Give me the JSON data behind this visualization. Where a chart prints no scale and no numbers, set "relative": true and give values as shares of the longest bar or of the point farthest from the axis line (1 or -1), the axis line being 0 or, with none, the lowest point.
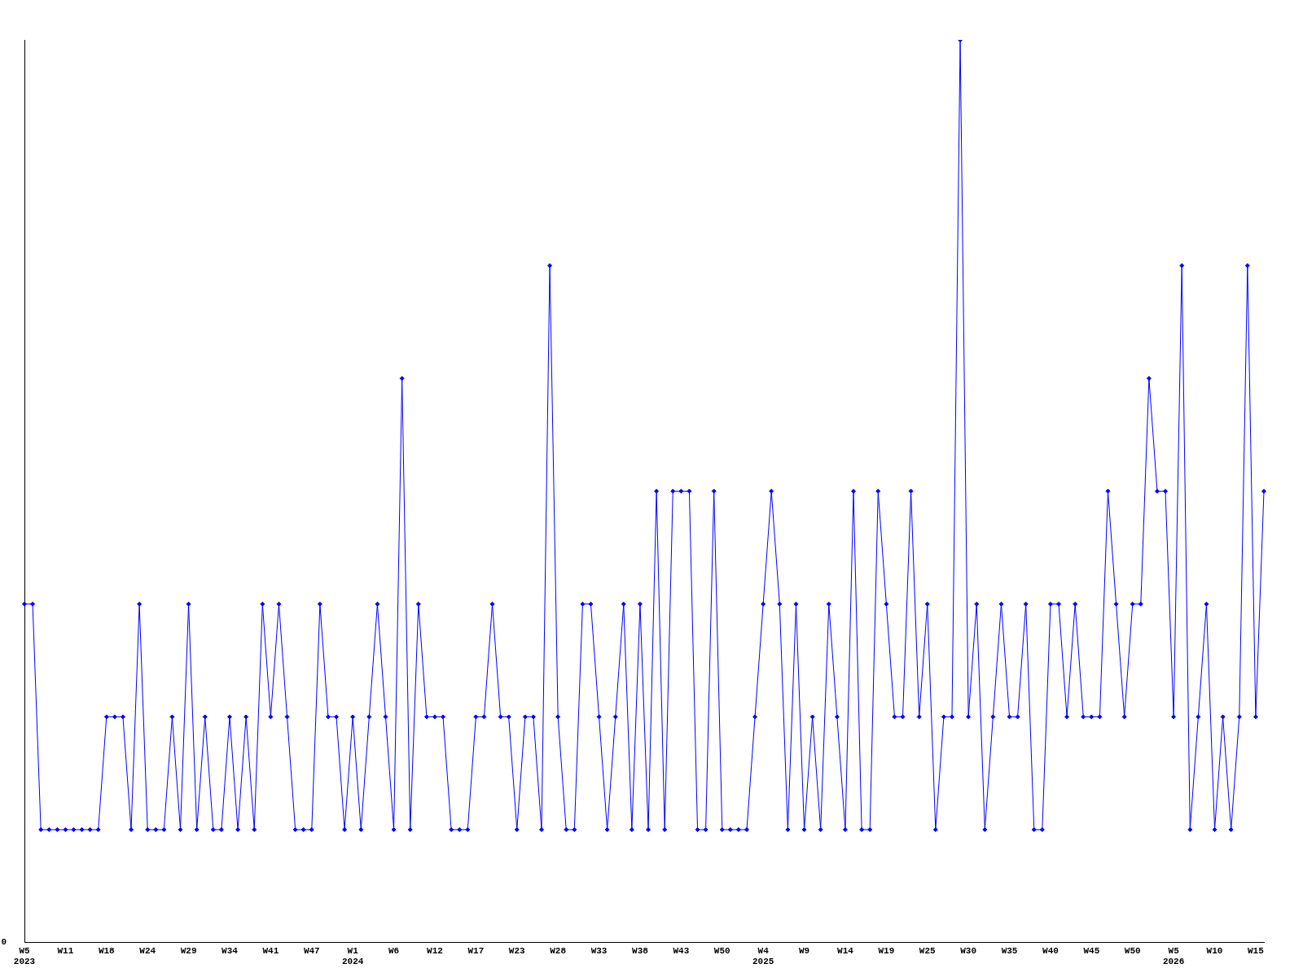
{
  "chart_data": {
    "type": "line",
    "relative": true,
    "marker": "diamond",
    "line_style": "solid",
    "grid": false,
    "legend": false,
    "annotations": [
      "0"
    ],
    "categories": [
      "W5\n2023",
      null,
      null,
      null,
      null,
      "W11",
      null,
      null,
      null,
      null,
      "W18",
      null,
      null,
      null,
      null,
      "W24",
      null,
      null,
      null,
      null,
      "W29",
      null,
      null,
      null,
      null,
      "W34",
      null,
      null,
      null,
      null,
      "W41",
      null,
      null,
      null,
      null,
      "W47",
      null,
      null,
      null,
      null,
      "W1\n2024",
      null,
      null,
      null,
      null,
      "W6",
      null,
      null,
      null,
      null,
      "W12",
      null,
      null,
      null,
      null,
      "W17",
      null,
      null,
      null,
      null,
      "W23",
      null,
      null,
      null,
      null,
      "W28",
      null,
      null,
      null,
      null,
      "W33",
      null,
      null,
      null,
      null,
      "W38",
      null,
      null,
      null,
      null,
      "W43",
      null,
      null,
      null,
      null,
      "W50",
      null,
      null,
      null,
      null,
      "W4\n2025",
      null,
      null,
      null,
      null,
      "W9",
      null,
      null,
      null,
      null,
      "W14",
      null,
      null,
      null,
      null,
      "W19",
      null,
      null,
      null,
      null,
      "W25",
      null,
      null,
      null,
      null,
      "W30",
      null,
      null,
      null,
      null,
      "W35",
      null,
      null,
      null,
      null,
      "W40",
      null,
      null,
      null,
      null,
      "W45",
      null,
      null,
      null,
      null,
      "W50",
      null,
      null,
      null,
      null,
      "W5\n2026",
      null,
      null,
      null,
      null,
      "W10",
      null,
      null,
      null,
      null,
      "W15",
      null
    ],
    "series": [
      {
        "color": "#0000ff",
        "values": [
          0.375,
          0.375,
          0.125,
          0.125,
          0.125,
          0.125,
          0.125,
          0.125,
          0.125,
          0.125,
          0.25,
          0.25,
          0.25,
          0.125,
          0.375,
          0.125,
          0.125,
          0.125,
          0.25,
          0.125,
          0.375,
          0.125,
          0.25,
          0.125,
          0.125,
          0.25,
          0.125,
          0.25,
          0.125,
          0.375,
          0.25,
          0.375,
          0.25,
          0.125,
          0.125,
          0.125,
          0.375,
          0.25,
          0.25,
          0.125,
          0.25,
          0.125,
          0.25,
          0.375,
          0.25,
          0.125,
          0.625,
          0.125,
          0.375,
          0.25,
          0.25,
          0.25,
          0.125,
          0.125,
          0.125,
          0.25,
          0.25,
          0.375,
          0.25,
          0.25,
          0.125,
          0.25,
          0.25,
          0.125,
          0.75,
          0.25,
          0.125,
          0.125,
          0.375,
          0.375,
          0.25,
          0.125,
          0.25,
          0.375,
          0.125,
          0.375,
          0.125,
          0.5,
          0.125,
          0.5,
          0.5,
          0.5,
          0.125,
          0.125,
          0.5,
          0.125,
          0.125,
          0.125,
          0.125,
          0.25,
          0.375,
          0.5,
          0.375,
          0.125,
          0.375,
          0.125,
          0.25,
          0.125,
          0.375,
          0.25,
          0.125,
          0.5,
          0.125,
          0.125,
          0.5,
          0.375,
          0.25,
          0.25,
          0.5,
          0.25,
          0.375,
          0.125,
          0.25,
          0.25,
          1,
          0.25,
          0.375,
          0.125,
          0.25,
          0.375,
          0.25,
          0.25,
          0.375,
          0.125,
          0.125,
          0.375,
          0.375,
          0.25,
          0.375,
          0.25,
          0.25,
          0.25,
          0.5,
          0.375,
          0.25,
          0.375,
          0.375,
          0.625,
          0.5,
          0.5,
          0.25,
          0.75,
          0.125,
          0.25,
          0.375,
          0.125,
          0.25,
          0.125,
          0.25,
          0.75,
          0.25,
          0.5
        ]
      }
    ]
  }
}
